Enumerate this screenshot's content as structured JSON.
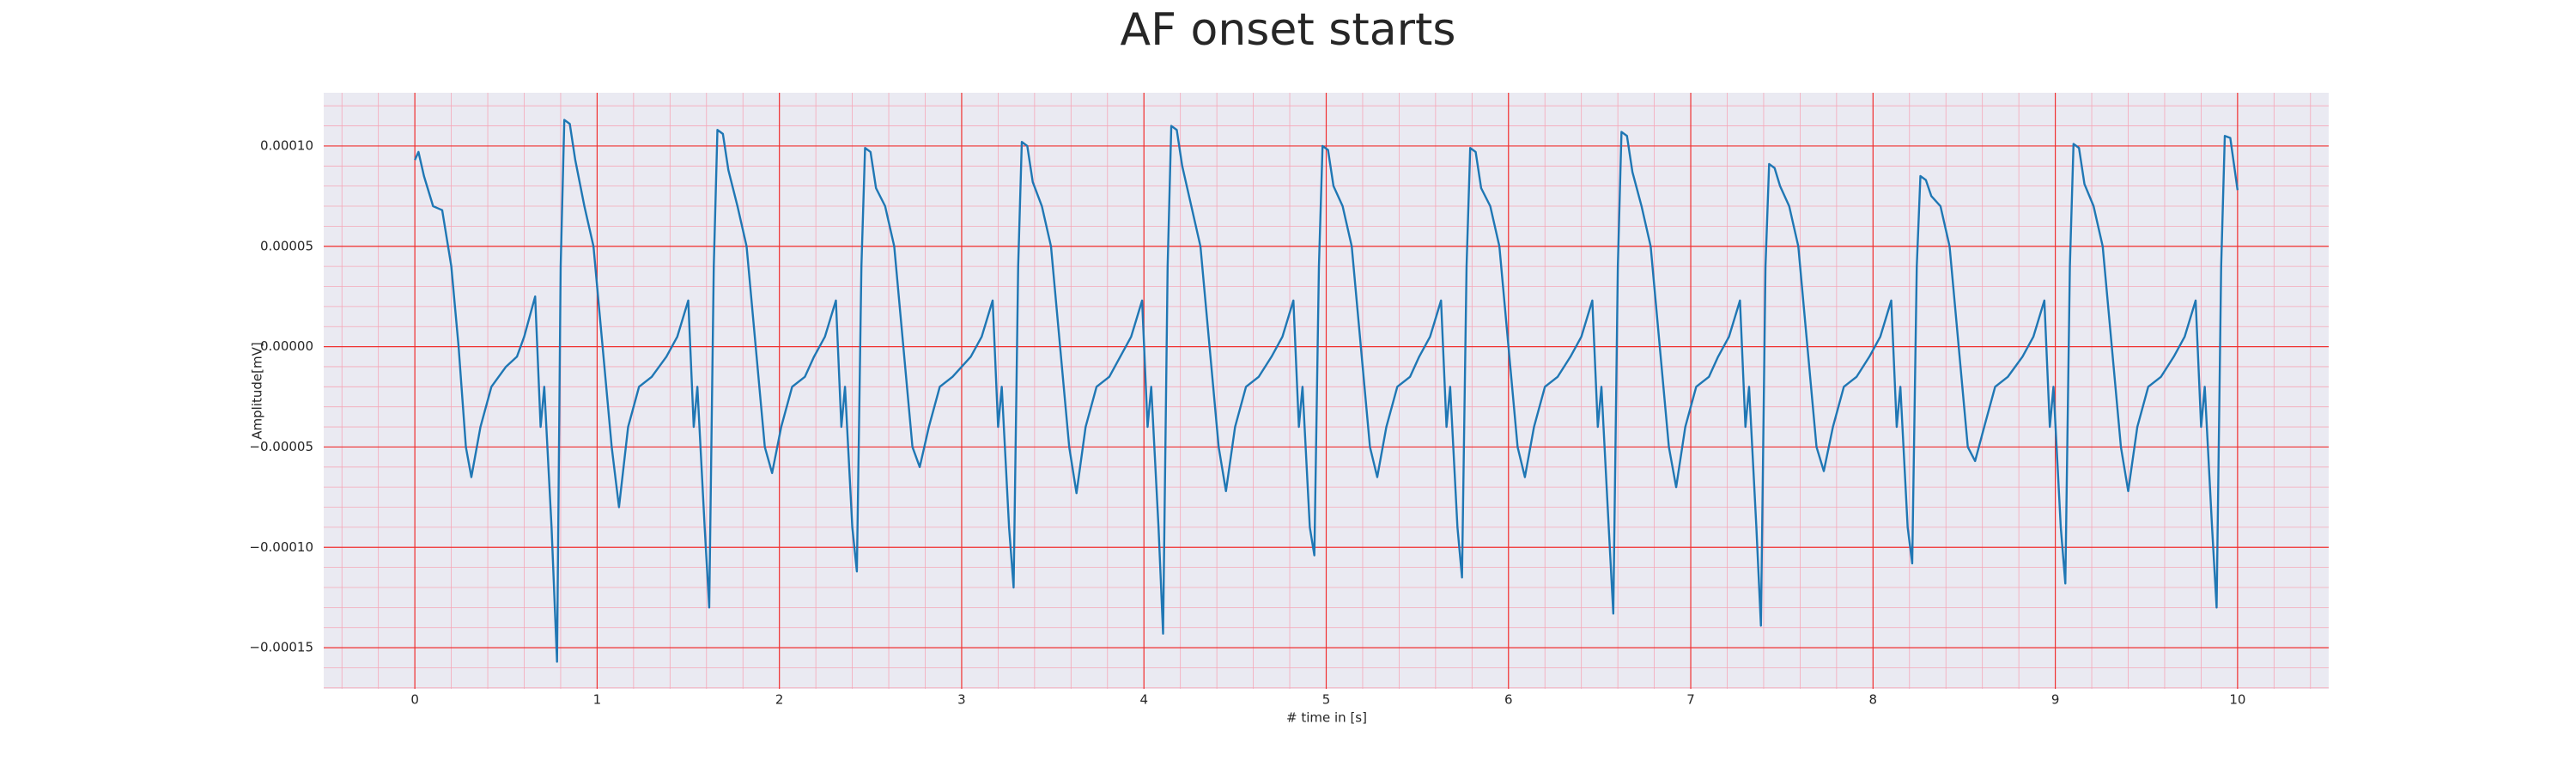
{
  "chart_data": {
    "type": "line",
    "title": "AF onset starts",
    "xlabel": "# time in [s]",
    "ylabel": "Amplitude[mV]",
    "x": [
      0,
      0.02,
      0.05,
      0.1,
      0.15,
      0.2,
      0.24,
      0.28,
      0.31,
      0.36,
      0.42,
      0.5,
      0.56,
      0.6,
      0.66,
      0.69,
      0.71,
      0.75,
      0.78,
      0.8,
      0.82,
      0.85,
      0.88,
      0.93,
      0.98,
      1.03,
      1.08,
      1.12,
      1.17,
      1.23,
      1.3,
      1.38,
      1.44,
      1.5,
      1.53,
      1.55,
      1.59,
      1.615,
      1.64,
      1.66,
      1.69,
      1.72,
      1.77,
      1.82,
      1.87,
      1.92,
      1.96,
      2.01,
      2.07,
      2.14,
      2.19,
      2.25,
      2.31,
      2.34,
      2.36,
      2.4,
      2.425,
      2.45,
      2.47,
      2.5,
      2.53,
      2.58,
      2.63,
      2.68,
      2.73,
      2.77,
      2.82,
      2.88,
      2.95,
      3.05,
      3.11,
      3.17,
      3.2,
      3.22,
      3.26,
      3.285,
      3.31,
      3.33,
      3.36,
      3.39,
      3.44,
      3.49,
      3.54,
      3.59,
      3.63,
      3.68,
      3.74,
      3.81,
      3.87,
      3.93,
      3.99,
      4.02,
      4.04,
      4.08,
      4.105,
      4.13,
      4.15,
      4.18,
      4.21,
      4.26,
      4.31,
      4.36,
      4.41,
      4.45,
      4.5,
      4.56,
      4.63,
      4.7,
      4.76,
      4.82,
      4.85,
      4.87,
      4.91,
      4.935,
      4.96,
      4.98,
      5.01,
      5.04,
      5.09,
      5.14,
      5.19,
      5.24,
      5.28,
      5.33,
      5.39,
      5.46,
      5.51,
      5.57,
      5.63,
      5.66,
      5.68,
      5.72,
      5.745,
      5.77,
      5.79,
      5.82,
      5.85,
      5.9,
      5.95,
      6.0,
      6.05,
      6.09,
      6.14,
      6.2,
      6.27,
      6.34,
      6.4,
      6.46,
      6.49,
      6.51,
      6.55,
      6.575,
      6.6,
      6.62,
      6.65,
      6.68,
      6.73,
      6.78,
      6.83,
      6.88,
      6.92,
      6.97,
      7.03,
      7.1,
      7.15,
      7.21,
      7.27,
      7.3,
      7.32,
      7.36,
      7.385,
      7.41,
      7.43,
      7.46,
      7.49,
      7.54,
      7.59,
      7.64,
      7.69,
      7.73,
      7.78,
      7.84,
      7.91,
      7.98,
      8.04,
      8.1,
      8.13,
      8.15,
      8.19,
      8.215,
      8.24,
      8.26,
      8.29,
      8.32,
      8.37,
      8.42,
      8.47,
      8.52,
      8.56,
      8.61,
      8.67,
      8.74,
      8.82,
      8.88,
      8.94,
      8.97,
      8.99,
      9.03,
      9.055,
      9.08,
      9.1,
      9.13,
      9.16,
      9.21,
      9.26,
      9.31,
      9.36,
      9.4,
      9.45,
      9.51,
      9.58,
      9.65,
      9.71,
      9.77,
      9.8,
      9.82,
      9.86,
      9.885,
      9.91,
      9.93,
      9.96,
      10.0
    ],
    "series": [
      {
        "color": "#1f77b4",
        "values": [
          9.3e-05,
          9.7e-05,
          8.5e-05,
          7e-05,
          6.8e-05,
          4e-05,
          0,
          -5e-05,
          -6.5e-05,
          -4e-05,
          -2e-05,
          -1e-05,
          -5e-06,
          5e-06,
          2.5e-05,
          -4e-05,
          -2e-05,
          -9e-05,
          -0.000157,
          4e-05,
          0.000113,
          0.000111,
          9.3e-05,
          7e-05,
          5e-05,
          0,
          -5e-05,
          -8e-05,
          -4e-05,
          -2e-05,
          -1.5e-05,
          -5e-06,
          5e-06,
          2.3e-05,
          -4e-05,
          -2e-05,
          -9e-05,
          -0.00013,
          4e-05,
          0.000108,
          0.000106,
          8.8e-05,
          7e-05,
          5e-05,
          0,
          -5e-05,
          -6.3e-05,
          -4e-05,
          -2e-05,
          -1.5e-05,
          -5e-06,
          5e-06,
          2.3e-05,
          -4e-05,
          -2e-05,
          -9e-05,
          -0.000112,
          4e-05,
          9.9e-05,
          9.7e-05,
          7.9e-05,
          7e-05,
          5e-05,
          0,
          -5e-05,
          -6e-05,
          -4e-05,
          -2e-05,
          -1.5e-05,
          -5e-06,
          5e-06,
          2.3e-05,
          -4e-05,
          -2e-05,
          -9e-05,
          -0.00012,
          4e-05,
          0.000102,
          0.0001,
          8.2e-05,
          7e-05,
          5e-05,
          0,
          -5e-05,
          -7.3e-05,
          -4e-05,
          -2e-05,
          -1.5e-05,
          -5e-06,
          5e-06,
          2.3e-05,
          -4e-05,
          -2e-05,
          -9e-05,
          -0.000143,
          4e-05,
          0.00011,
          0.000108,
          9e-05,
          7e-05,
          5e-05,
          0,
          -5e-05,
          -7.2e-05,
          -4e-05,
          -2e-05,
          -1.5e-05,
          -5e-06,
          5e-06,
          2.3e-05,
          -4e-05,
          -2e-05,
          -9e-05,
          -0.000104,
          4e-05,
          0.0001,
          9.8e-05,
          8e-05,
          7e-05,
          5e-05,
          0,
          -5e-05,
          -6.5e-05,
          -4e-05,
          -2e-05,
          -1.5e-05,
          -5e-06,
          5e-06,
          2.3e-05,
          -4e-05,
          -2e-05,
          -9e-05,
          -0.000115,
          4e-05,
          9.9e-05,
          9.7e-05,
          7.9e-05,
          7e-05,
          5e-05,
          0,
          -5e-05,
          -6.5e-05,
          -4e-05,
          -2e-05,
          -1.5e-05,
          -5e-06,
          5e-06,
          2.3e-05,
          -4e-05,
          -2e-05,
          -9e-05,
          -0.000133,
          4e-05,
          0.000107,
          0.000105,
          8.7e-05,
          7e-05,
          5e-05,
          0,
          -5e-05,
          -7e-05,
          -4e-05,
          -2e-05,
          -1.5e-05,
          -5e-06,
          5e-06,
          2.3e-05,
          -4e-05,
          -2e-05,
          -9e-05,
          -0.000139,
          4e-05,
          9.1e-05,
          8.9e-05,
          8e-05,
          7e-05,
          5e-05,
          0,
          -5e-05,
          -6.2e-05,
          -4e-05,
          -2e-05,
          -1.5e-05,
          -5e-06,
          5e-06,
          2.3e-05,
          -4e-05,
          -2e-05,
          -9e-05,
          -0.000108,
          4e-05,
          8.5e-05,
          8.3e-05,
          7.5e-05,
          7e-05,
          5e-05,
          0,
          -5e-05,
          -5.7e-05,
          -4e-05,
          -2e-05,
          -1.5e-05,
          -5e-06,
          5e-06,
          2.3e-05,
          -4e-05,
          -2e-05,
          -9e-05,
          -0.000118,
          4e-05,
          0.000101,
          9.9e-05,
          8.1e-05,
          7e-05,
          5e-05,
          0,
          -5e-05,
          -7.2e-05,
          -4e-05,
          -2e-05,
          -1.5e-05,
          -5e-06,
          5e-06,
          2.3e-05,
          -4e-05,
          -2e-05,
          -9e-05,
          -0.00013,
          4e-05,
          0.000105,
          0.000104,
          7.8e-05
        ]
      }
    ],
    "xlim": [
      -0.5,
      10.5
    ],
    "xticks": [
      0,
      1,
      2,
      3,
      4,
      5,
      6,
      7,
      8,
      9,
      10
    ],
    "ylim": [
      -0.0001705,
      0.0001265
    ],
    "yticks": [
      {
        "value": -0.00015,
        "label": "−0.00015"
      },
      {
        "value": -0.0001,
        "label": "−0.00010"
      },
      {
        "value": -5e-05,
        "label": "−0.00005"
      },
      {
        "value": 0,
        "label": "0.00000"
      },
      {
        "value": 5e-05,
        "label": "0.00005"
      },
      {
        "value": 0.0001,
        "label": "0.00010"
      }
    ],
    "grid": true,
    "minor_grid": true
  }
}
